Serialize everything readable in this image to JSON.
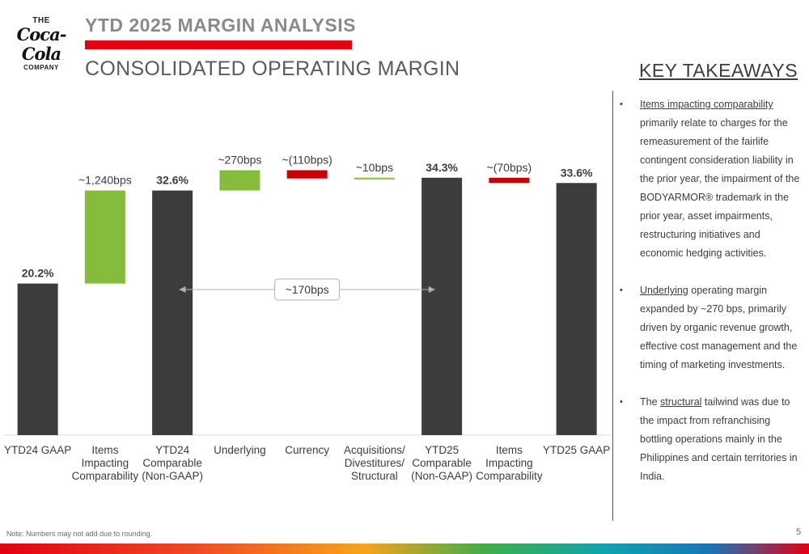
{
  "logo": {
    "line1": "THE",
    "line2": "Coca-Cola",
    "line3": "COMPANY"
  },
  "header": {
    "title": "YTD 2025 MARGIN ANALYSIS",
    "subtitle": "CONSOLIDATED OPERATING MARGIN"
  },
  "key_takeaways": {
    "title": "KEY TAKEAWAYS",
    "items": [
      {
        "highlight": "Items impacting comparability",
        "text": " primarily relate to charges for the remeasurement of the fairlife contingent consideration liability in the prior year, the impairment of the BODYARMOR® trademark in the prior year, asset impairments, restructuring initiatives and economic hedging activities."
      },
      {
        "highlight": "Underlying",
        "text": " operating margin expanded by ~270 bps, primarily driven by organic revenue growth, effective cost management and the timing of marketing investments."
      },
      {
        "prefix": "The ",
        "highlight": "structural",
        "text": " tailwind was due to the impact from refranchising bottling operations mainly in the Philippines and certain territories in India."
      }
    ]
  },
  "chart_data": {
    "type": "bar",
    "subtype": "waterfall",
    "categories": [
      [
        "YTD24 GAAP"
      ],
      [
        "Items",
        "Impacting",
        "Comparability"
      ],
      [
        "YTD24",
        "Comparable",
        "(Non-GAAP)"
      ],
      [
        "Underlying"
      ],
      [
        "Currency"
      ],
      [
        "Acquisitions/",
        "Divestitures/",
        "Structural"
      ],
      [
        "YTD25",
        "Comparable",
        "(Non-GAAP)"
      ],
      [
        "Items",
        "Impacting",
        "Comparability"
      ],
      [
        "YTD25 GAAP"
      ]
    ],
    "bars": [
      {
        "kind": "total",
        "start": 0,
        "end": 20.2,
        "label": "20.2%",
        "bold": true
      },
      {
        "kind": "increase",
        "start": 20.2,
        "end": 32.6,
        "label": "~1,240bps",
        "bold": false
      },
      {
        "kind": "total",
        "start": 0,
        "end": 32.6,
        "label": "32.6%",
        "bold": true
      },
      {
        "kind": "increase",
        "start": 32.6,
        "end": 35.3,
        "label": "~270bps",
        "bold": false
      },
      {
        "kind": "decrease",
        "start": 35.3,
        "end": 34.2,
        "label": "~(110bps)",
        "bold": false
      },
      {
        "kind": "increase",
        "start": 34.2,
        "end": 34.3,
        "label": "~10bps",
        "bold": false
      },
      {
        "kind": "total",
        "start": 0,
        "end": 34.3,
        "label": "34.3%",
        "bold": true
      },
      {
        "kind": "decrease",
        "start": 34.3,
        "end": 33.6,
        "label": "~(70bps)",
        "bold": false
      },
      {
        "kind": "total",
        "start": 0,
        "end": 33.6,
        "label": "33.6%",
        "bold": true
      }
    ],
    "bracket": {
      "from_index": 3,
      "to_index": 5,
      "label": "~170bps"
    },
    "colors": {
      "total": "#3c3c3c",
      "increase": "#86bc3b",
      "decrease": "#cc0000"
    },
    "ylim": [
      0,
      36
    ],
    "grid": false,
    "legend": "none"
  },
  "footer": {
    "note": "Note: Numbers may not add due to rounding.",
    "page": "5"
  }
}
